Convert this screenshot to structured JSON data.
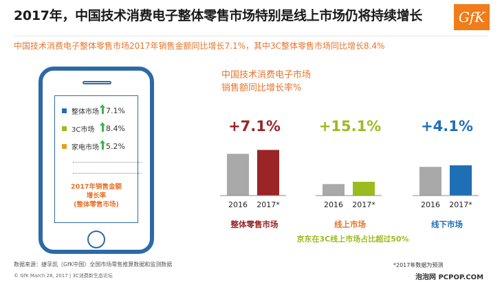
{
  "header": {
    "title": "2017年，中国技术消费电子整体零售市场特别是线上市场仍将持续增长",
    "logo_text": "GfK",
    "subtitle": "中国技术消费电子整体零售市场2017年销售金额同比增长7.1%，其中3C整体零售市场同比增长8.4%"
  },
  "phone": {
    "legend": [
      {
        "label": "整体市场",
        "value": "7.1%",
        "color": "#1f6fb5"
      },
      {
        "label": "3C市场",
        "value": "8.4%",
        "color": "#9bbb1e"
      },
      {
        "label": "家电市场",
        "value": "5.2%",
        "color": "#e3a21a"
      }
    ],
    "caption_line1": "2017年销售金额",
    "caption_line2": "增长率",
    "caption_line3": "(整体零售市场)",
    "arrow_color": "#39b54a"
  },
  "chart_header": {
    "line1": "中国技术消费电子市场",
    "line2": "销售额同比增长率%"
  },
  "chart_data": [
    {
      "type": "bar",
      "title": "整体零售市场",
      "growth_label": "+7.1%",
      "growth_color": "#9b2426",
      "categories": [
        "2016",
        "2017*"
      ],
      "values": [
        100,
        107.1
      ],
      "colors": [
        "#a9a9a9",
        "#9b2426"
      ]
    },
    {
      "type": "bar",
      "title": "线上市场",
      "growth_label": "+15.1%",
      "growth_color": "#9bbb1e",
      "categories": [
        "2016",
        "2017*"
      ],
      "values": [
        100,
        115.1
      ],
      "colors": [
        "#a9a9a9",
        "#9bbb1e"
      ]
    },
    {
      "type": "bar",
      "title": "线下市场",
      "growth_label": "+4.1%",
      "growth_color": "#1f6fb5",
      "categories": [
        "2016",
        "2017*"
      ],
      "values": [
        100,
        104.1
      ],
      "colors": [
        "#a9a9a9",
        "#1f6fb5"
      ]
    }
  ],
  "chart_note": "京东在3C线上市场占比超过50%",
  "chart_note_color": "#9bbb1e",
  "footer": {
    "source": "数据来源：捷孚凯（GfK中国）全国市场零售推算数据和监测数据",
    "line2": "© GfK March 28, 2017 | 3C消费新生态论坛",
    "note": "*2017年数据为预测",
    "watermark": "泡泡网 PCPOP.COM"
  }
}
